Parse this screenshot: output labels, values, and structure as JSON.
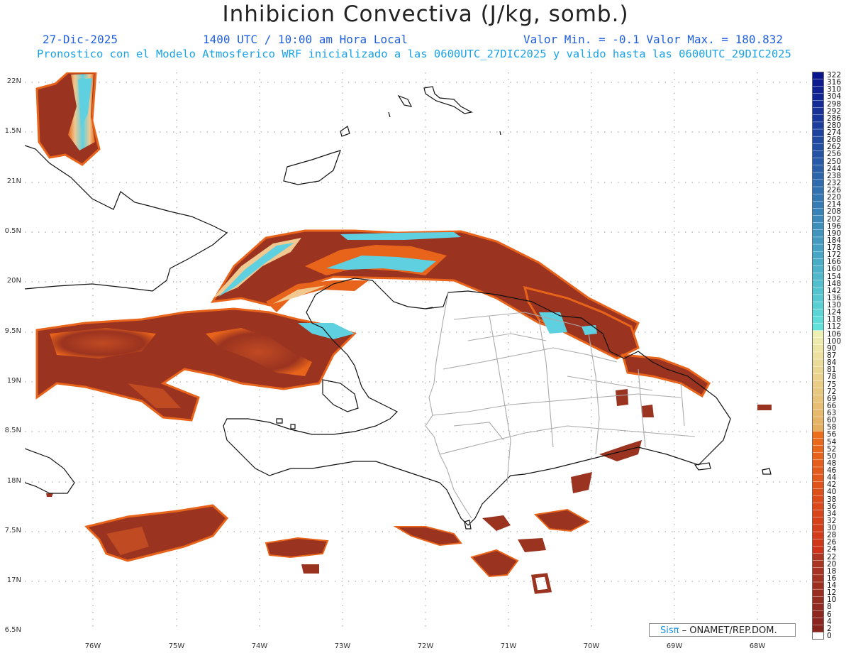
{
  "header": {
    "title": "Inhibicion Convectiva (J/kg, somb.)",
    "date": "27-Dic-2025",
    "time": "1400 UTC / 10:00 am Hora Local",
    "minmax": "Valor Min. = -0.1  Valor Max. = 180.832",
    "subtitle": "Pronostico con el Modelo Atmosferico WRF inicializado a las 0600UTC_27DIC2025 y valido hasta las  0600UTC_29DIC2025"
  },
  "axes": {
    "x_labels": [
      "76W",
      "75W",
      "74W",
      "73W",
      "72W",
      "71W",
      "70W",
      "69W",
      "68W"
    ],
    "y_labels": [
      "22N",
      "1.5N",
      "21N",
      "0.5N",
      "20N",
      "9.5N",
      "19N",
      "8.5N",
      "18N",
      "7.5N",
      "17N",
      "6.5N"
    ]
  },
  "legend": {
    "labels": [
      "322",
      "316",
      "310",
      "304",
      "298",
      "292",
      "286",
      "280",
      "274",
      "268",
      "262",
      "256",
      "250",
      "244",
      "238",
      "232",
      "226",
      "220",
      "214",
      "208",
      "202",
      "196",
      "190",
      "184",
      "178",
      "172",
      "166",
      "160",
      "154",
      "148",
      "142",
      "136",
      "130",
      "124",
      "118",
      "112",
      "106",
      "100",
      "90",
      "87",
      "84",
      "81",
      "78",
      "75",
      "72",
      "69",
      "66",
      "63",
      "60",
      "58",
      "56",
      "54",
      "52",
      "50",
      "48",
      "46",
      "44",
      "42",
      "40",
      "38",
      "36",
      "34",
      "32",
      "30",
      "28",
      "26",
      "24",
      "22",
      "20",
      "18",
      "16",
      "14",
      "12",
      "10",
      "8",
      "6",
      "4",
      "2",
      "0"
    ]
  },
  "credit": {
    "brand": "Sisπ",
    "org": " – ONAMET/REP.DOM."
  },
  "colors": {
    "dark_red": "#8b2a1e",
    "orange": "#e8641a",
    "cyan": "#5fd0e0",
    "navy": "#0a1a8c",
    "coast": "#111111",
    "borders": "#aaaaaa"
  }
}
